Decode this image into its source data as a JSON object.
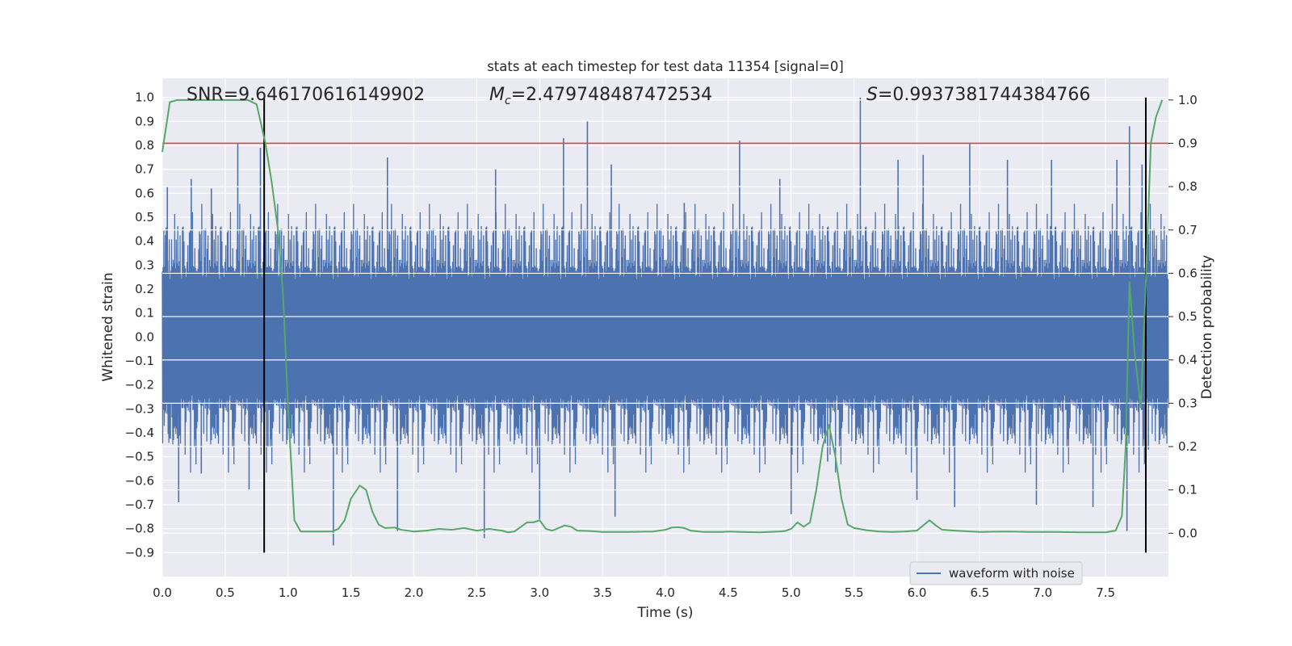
{
  "chart_data": {
    "type": "line",
    "title": "stats at each timestep for test data 11354 [signal=0]",
    "xlabel": "Time (s)",
    "ylabel_left": "Whitened strain",
    "ylabel_right": "Detection probability",
    "xlim": [
      0.0,
      8.0
    ],
    "ylim_left": [
      -1.0,
      1.08
    ],
    "ylim_right": [
      -0.1,
      1.05
    ],
    "xticks": [
      0.0,
      0.5,
      1.0,
      1.5,
      2.0,
      2.5,
      3.0,
      3.5,
      4.0,
      4.5,
      5.0,
      5.5,
      6.0,
      6.5,
      7.0,
      7.5
    ],
    "xtick_labels": [
      "0.0",
      "0.5",
      "1.0",
      "1.5",
      "2.0",
      "2.5",
      "3.0",
      "3.5",
      "4.0",
      "4.5",
      "5.0",
      "5.5",
      "6.0",
      "6.5",
      "7.0",
      "7.5"
    ],
    "yticks_left": [
      -0.9,
      -0.8,
      -0.7,
      -0.6,
      -0.5,
      -0.4,
      -0.3,
      -0.2,
      -0.1,
      0.0,
      0.1,
      0.2,
      0.3,
      0.4,
      0.5,
      0.6,
      0.7,
      0.8,
      0.9,
      1.0
    ],
    "ytick_labels_left": [
      "−0.9",
      "−0.8",
      "−0.7",
      "−0.6",
      "−0.5",
      "−0.4",
      "−0.3",
      "−0.2",
      "−0.1",
      "0.0",
      "0.1",
      "0.2",
      "0.3",
      "0.4",
      "0.5",
      "0.6",
      "0.7",
      "0.8",
      "0.9",
      "1.0"
    ],
    "yticks_right": [
      0.0,
      0.1,
      0.2,
      0.3,
      0.4,
      0.5,
      0.6,
      0.7,
      0.8,
      0.9,
      1.0
    ],
    "ytick_labels_right": [
      "0.0",
      "0.1",
      "0.2",
      "0.3",
      "0.4",
      "0.5",
      "0.6",
      "0.7",
      "0.8",
      "0.9",
      "1.0"
    ],
    "annotations": {
      "snr": "SNR=9.646170616149902",
      "mc_symbol": "M",
      "mc_subscript": "c",
      "mc_value": "=2.479748487472534",
      "s_symbol": "S",
      "s_value": "=0.9937381744384766"
    },
    "threshold_right": 0.9,
    "vlines_x": [
      0.81,
      7.82
    ],
    "vlines_ylim_left": [
      -0.9,
      1.0
    ],
    "legend": {
      "label": "waveform with noise",
      "location": "lower-right"
    },
    "series": [
      {
        "name": "waveform with noise",
        "axis": "left",
        "style": "noise-band",
        "core_amplitude": 0.32,
        "typical_peak": 0.45,
        "spikes": [
          {
            "x": 0.04,
            "y": 0.63
          },
          {
            "x": 0.13,
            "y": -0.69
          },
          {
            "x": 0.23,
            "y": 0.66
          },
          {
            "x": 0.31,
            "y": -0.57
          },
          {
            "x": 0.39,
            "y": 0.62
          },
          {
            "x": 0.6,
            "y": 0.81
          },
          {
            "x": 0.69,
            "y": -0.64
          },
          {
            "x": 0.78,
            "y": 0.79
          },
          {
            "x": 0.84,
            "y": -0.46
          },
          {
            "x": 1.36,
            "y": -0.87
          },
          {
            "x": 1.79,
            "y": 0.75
          },
          {
            "x": 1.87,
            "y": -0.81
          },
          {
            "x": 2.56,
            "y": -0.84
          },
          {
            "x": 2.65,
            "y": 0.7
          },
          {
            "x": 3.0,
            "y": -0.76
          },
          {
            "x": 3.19,
            "y": 0.83
          },
          {
            "x": 3.38,
            "y": 0.9
          },
          {
            "x": 3.57,
            "y": 0.72
          },
          {
            "x": 3.6,
            "y": -0.75
          },
          {
            "x": 4.15,
            "y": 0.56
          },
          {
            "x": 4.59,
            "y": 0.82
          },
          {
            "x": 4.91,
            "y": 0.66
          },
          {
            "x": 5.0,
            "y": -0.74
          },
          {
            "x": 5.29,
            "y": -0.52
          },
          {
            "x": 5.55,
            "y": 1.0
          },
          {
            "x": 5.85,
            "y": 0.74
          },
          {
            "x": 6.0,
            "y": -0.68
          },
          {
            "x": 6.05,
            "y": 0.76
          },
          {
            "x": 6.3,
            "y": -0.71
          },
          {
            "x": 6.42,
            "y": 0.81
          },
          {
            "x": 6.72,
            "y": 0.74
          },
          {
            "x": 6.95,
            "y": -0.7
          },
          {
            "x": 7.07,
            "y": 0.74
          },
          {
            "x": 7.4,
            "y": -0.71
          },
          {
            "x": 7.59,
            "y": 0.74
          },
          {
            "x": 7.67,
            "y": -0.81
          },
          {
            "x": 7.69,
            "y": 0.88
          },
          {
            "x": 7.79,
            "y": 0.72
          },
          {
            "x": 7.84,
            "y": -0.47
          }
        ]
      },
      {
        "name": "detection probability",
        "axis": "right",
        "x": [
          0.0,
          0.06,
          0.12,
          0.2,
          0.3,
          0.4,
          0.5,
          0.6,
          0.68,
          0.75,
          0.82,
          0.87,
          0.92,
          0.96,
          1.0,
          1.05,
          1.1,
          1.2,
          1.3,
          1.35,
          1.4,
          1.45,
          1.5,
          1.57,
          1.62,
          1.67,
          1.72,
          1.77,
          1.85,
          1.9,
          2.0,
          2.1,
          2.2,
          2.3,
          2.4,
          2.5,
          2.6,
          2.7,
          2.75,
          2.8,
          2.9,
          2.95,
          3.0,
          3.05,
          3.1,
          3.2,
          3.25,
          3.3,
          3.4,
          3.5,
          3.7,
          3.9,
          4.0,
          4.05,
          4.1,
          4.15,
          4.2,
          4.3,
          4.45,
          4.5,
          4.6,
          4.75,
          4.9,
          4.95,
          5.0,
          5.05,
          5.1,
          5.15,
          5.2,
          5.25,
          5.3,
          5.35,
          5.4,
          5.45,
          5.5,
          5.6,
          5.7,
          5.8,
          5.9,
          6.0,
          6.1,
          6.15,
          6.2,
          6.3,
          6.5,
          6.7,
          6.9,
          7.1,
          7.3,
          7.5,
          7.58,
          7.63,
          7.66,
          7.69,
          7.73,
          7.78,
          7.82,
          7.86,
          7.9,
          7.95
        ],
        "y": [
          0.88,
          0.995,
          1.0,
          1.0,
          1.0,
          1.0,
          1.0,
          1.0,
          1.0,
          0.99,
          0.9,
          0.81,
          0.7,
          0.55,
          0.29,
          0.03,
          0.004,
          0.004,
          0.004,
          0.004,
          0.01,
          0.03,
          0.08,
          0.11,
          0.1,
          0.05,
          0.02,
          0.012,
          0.013,
          0.008,
          0.004,
          0.006,
          0.01,
          0.008,
          0.012,
          0.006,
          0.01,
          0.006,
          0.002,
          0.004,
          0.025,
          0.025,
          0.03,
          0.01,
          0.006,
          0.018,
          0.015,
          0.006,
          0.005,
          0.003,
          0.003,
          0.004,
          0.008,
          0.013,
          0.014,
          0.012,
          0.006,
          0.003,
          0.003,
          0.004,
          0.003,
          0.002,
          0.004,
          0.005,
          0.01,
          0.025,
          0.015,
          0.025,
          0.1,
          0.2,
          0.25,
          0.18,
          0.08,
          0.02,
          0.012,
          0.007,
          0.004,
          0.003,
          0.004,
          0.006,
          0.03,
          0.018,
          0.008,
          0.006,
          0.003,
          0.004,
          0.003,
          0.003,
          0.002,
          0.002,
          0.006,
          0.04,
          0.2,
          0.58,
          0.42,
          0.29,
          0.58,
          0.9,
          0.96,
          1.0
        ]
      }
    ],
    "colors": {
      "background": "#eaeaf2",
      "grid": "#ffffff",
      "waveform": "#4c72b0",
      "probability": "#55a868",
      "threshold": "#c44e52",
      "vline": "#000000",
      "text": "#262626"
    }
  }
}
